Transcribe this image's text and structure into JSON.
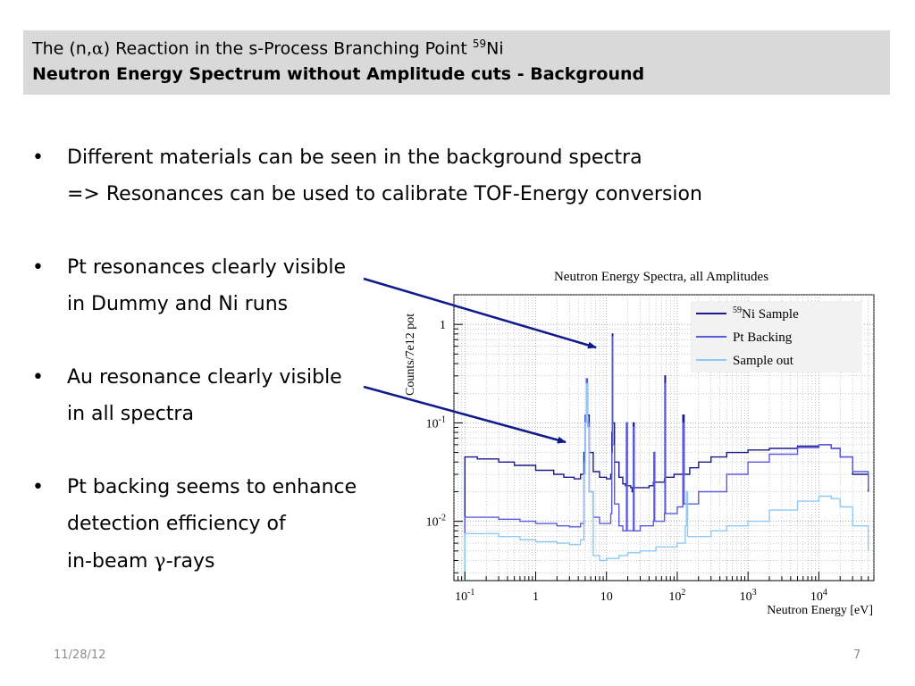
{
  "slide": {
    "title_prefix": "The (n,",
    "title_alpha": "α",
    "title_mid": ") Reaction in the s-Process Branching Point ",
    "title_sup": "59",
    "title_suffix": "Ni",
    "subtitle": "Neutron Energy Spectrum without Amplitude cuts - Background",
    "date": "11/28/12",
    "page": "7"
  },
  "bullets": [
    {
      "lines": [
        "Different materials can be seen in the background spectra",
        "=> Resonances can be used to calibrate TOF-Energy conversion"
      ]
    },
    {
      "lines": [
        "Pt resonances clearly visible",
        "in Dummy and Ni runs"
      ]
    },
    {
      "lines": [
        "Au resonance clearly visible",
        "in all spectra"
      ]
    },
    {
      "lines": [
        "Pt backing seems to enhance",
        "detection efficiency of"
      ],
      "last_prefix": "in-beam ",
      "last_greek": "γ",
      "last_suffix": "-rays"
    }
  ],
  "chart_data": {
    "type": "line",
    "title": "Neutron Energy Spectra, all Amplitudes",
    "xlabel": "Neutron Energy [eV]",
    "ylabel": "Counts/7e12 pot",
    "xscale": "log",
    "yscale": "log",
    "xlim": [
      0.07,
      60000
    ],
    "ylim": [
      0.0025,
      2
    ],
    "x_ticks": [
      {
        "value": 0.1,
        "label": "10",
        "sup": "-1"
      },
      {
        "value": 1,
        "label": "1",
        "sup": ""
      },
      {
        "value": 10,
        "label": "10",
        "sup": ""
      },
      {
        "value": 100,
        "label": "10",
        "sup": "2"
      },
      {
        "value": 1000,
        "label": "10",
        "sup": "3"
      },
      {
        "value": 10000,
        "label": "10",
        "sup": "4"
      }
    ],
    "y_ticks": [
      {
        "value": 1,
        "label": "1",
        "sup": ""
      },
      {
        "value": 0.1,
        "label": "10",
        "sup": "-1"
      },
      {
        "value": 0.01,
        "label": "10",
        "sup": "-2"
      }
    ],
    "grid": true,
    "legend_position": "top-right",
    "series": [
      {
        "name": "Ni Sample",
        "name_sup": "59",
        "color": "#1a1a8c",
        "points": [
          [
            0.085,
            0.0025
          ],
          [
            0.1,
            0.0025
          ],
          [
            0.1,
            0.045
          ],
          [
            0.15,
            0.043
          ],
          [
            0.3,
            0.04
          ],
          [
            0.5,
            0.037
          ],
          [
            1,
            0.033
          ],
          [
            1.8,
            0.03
          ],
          [
            2.5,
            0.028
          ],
          [
            3.5,
            0.027
          ],
          [
            4.3,
            0.03
          ],
          [
            4.8,
            0.05
          ],
          [
            5.0,
            0.12
          ],
          [
            5.2,
            0.25
          ],
          [
            5.4,
            0.12
          ],
          [
            5.7,
            0.05
          ],
          [
            6.5,
            0.032
          ],
          [
            8,
            0.028
          ],
          [
            10,
            0.027
          ],
          [
            11.5,
            0.03
          ],
          [
            11.9,
            0.08
          ],
          [
            12.1,
            0.8
          ],
          [
            12.3,
            0.1
          ],
          [
            13,
            0.04
          ],
          [
            15,
            0.028
          ],
          [
            17,
            0.024
          ],
          [
            18.5,
            0.023
          ],
          [
            19.2,
            0.1
          ],
          [
            19.7,
            0.023
          ],
          [
            22,
            0.022
          ],
          [
            23,
            0.02
          ],
          [
            24,
            0.1
          ],
          [
            24.6,
            0.022
          ],
          [
            30,
            0.022
          ],
          [
            40,
            0.023
          ],
          [
            46,
            0.025
          ],
          [
            47,
            0.05
          ],
          [
            48,
            0.025
          ],
          [
            66,
            0.027
          ],
          [
            67,
            0.3
          ],
          [
            68,
            0.028
          ],
          [
            90,
            0.03
          ],
          [
            110,
            0.03
          ],
          [
            120,
            0.12
          ],
          [
            125,
            0.03
          ],
          [
            150,
            0.035
          ],
          [
            200,
            0.04
          ],
          [
            300,
            0.045
          ],
          [
            500,
            0.05
          ],
          [
            1000,
            0.053
          ],
          [
            2000,
            0.055
          ],
          [
            5000,
            0.058
          ],
          [
            10000,
            0.06
          ],
          [
            15000,
            0.055
          ],
          [
            20000,
            0.045
          ],
          [
            30000,
            0.03
          ],
          [
            50000,
            0.02
          ]
        ]
      },
      {
        "name": "Pt Backing",
        "name_sup": "",
        "color": "#5a5ae0",
        "points": [
          [
            0.085,
            0.0025
          ],
          [
            0.1,
            0.0025
          ],
          [
            0.1,
            0.011
          ],
          [
            0.3,
            0.0105
          ],
          [
            0.6,
            0.01
          ],
          [
            1,
            0.0095
          ],
          [
            2,
            0.009
          ],
          [
            3,
            0.0088
          ],
          [
            4.3,
            0.0095
          ],
          [
            4.8,
            0.04
          ],
          [
            5.0,
            0.12
          ],
          [
            5.2,
            0.28
          ],
          [
            5.4,
            0.1
          ],
          [
            5.7,
            0.02
          ],
          [
            6.5,
            0.011
          ],
          [
            8,
            0.0095
          ],
          [
            10,
            0.0095
          ],
          [
            11.5,
            0.012
          ],
          [
            11.9,
            0.05
          ],
          [
            12.1,
            0.75
          ],
          [
            12.3,
            0.06
          ],
          [
            13,
            0.015
          ],
          [
            15,
            0.009
          ],
          [
            17,
            0.008
          ],
          [
            19.2,
            0.1
          ],
          [
            19.7,
            0.008
          ],
          [
            23,
            0.008
          ],
          [
            24,
            0.09
          ],
          [
            24.6,
            0.008
          ],
          [
            30,
            0.009
          ],
          [
            46,
            0.01
          ],
          [
            47,
            0.05
          ],
          [
            48,
            0.01
          ],
          [
            66,
            0.012
          ],
          [
            67,
            0.25
          ],
          [
            68,
            0.012
          ],
          [
            100,
            0.014
          ],
          [
            120,
            0.1
          ],
          [
            125,
            0.015
          ],
          [
            200,
            0.02
          ],
          [
            500,
            0.03
          ],
          [
            1000,
            0.04
          ],
          [
            2000,
            0.048
          ],
          [
            5000,
            0.056
          ],
          [
            10000,
            0.06
          ],
          [
            15000,
            0.055
          ],
          [
            20000,
            0.045
          ],
          [
            30000,
            0.032
          ],
          [
            50000,
            0.021
          ]
        ]
      },
      {
        "name": "Sample out",
        "name_sup": "",
        "color": "#8ec8f5",
        "points": [
          [
            0.085,
            0.0025
          ],
          [
            0.1,
            0.0025
          ],
          [
            0.1,
            0.0075
          ],
          [
            0.3,
            0.007
          ],
          [
            0.6,
            0.0065
          ],
          [
            1,
            0.0062
          ],
          [
            2,
            0.006
          ],
          [
            3,
            0.0058
          ],
          [
            4.3,
            0.0065
          ],
          [
            4.8,
            0.03
          ],
          [
            5.0,
            0.1
          ],
          [
            5.2,
            0.25
          ],
          [
            5.4,
            0.09
          ],
          [
            5.7,
            0.02
          ],
          [
            6.5,
            0.0045
          ],
          [
            8,
            0.004
          ],
          [
            10,
            0.0042
          ],
          [
            15,
            0.0045
          ],
          [
            20,
            0.0048
          ],
          [
            30,
            0.005
          ],
          [
            50,
            0.0055
          ],
          [
            100,
            0.006
          ],
          [
            130,
            0.009
          ],
          [
            135,
            0.02
          ],
          [
            140,
            0.007
          ],
          [
            300,
            0.008
          ],
          [
            500,
            0.009
          ],
          [
            1000,
            0.01
          ],
          [
            2000,
            0.013
          ],
          [
            5000,
            0.016
          ],
          [
            10000,
            0.018
          ],
          [
            15000,
            0.017
          ],
          [
            20000,
            0.014
          ],
          [
            30000,
            0.009
          ],
          [
            50000,
            0.005
          ]
        ]
      }
    ]
  }
}
